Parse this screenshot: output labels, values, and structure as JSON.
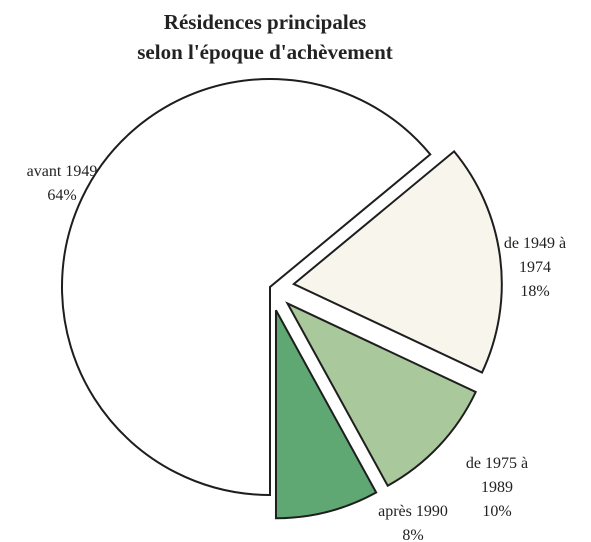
{
  "chart_data": {
    "type": "pie",
    "title": [
      "Résidences principales",
      "selon l'époque d'achèvement"
    ],
    "categories": [
      "avant 1949",
      "de 1949 à 1974",
      "de 1975 à 1989",
      "après 1990"
    ],
    "values": [
      64,
      18,
      10,
      8
    ],
    "value_labels": [
      "64%",
      "18%",
      "10%",
      "8%"
    ],
    "colors": [
      "#ffffff",
      "#f7f5ec",
      "#a9c89b",
      "#5fa873"
    ]
  }
}
